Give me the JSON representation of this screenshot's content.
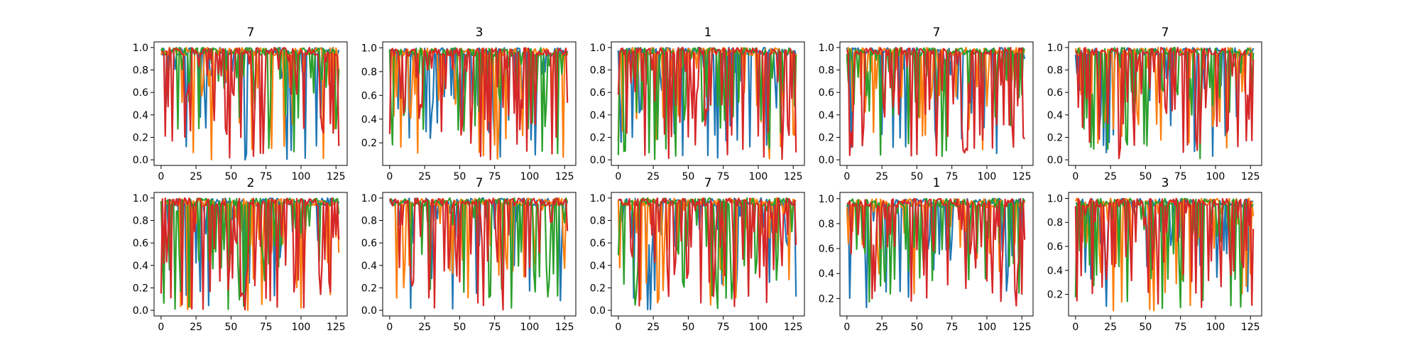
{
  "figure": {
    "background": "#ffffff",
    "rows": 2,
    "cols": 5
  },
  "chart_data": [
    {
      "type": "line",
      "title": "7",
      "xlim": [
        -5,
        133
      ],
      "ylim": [
        -0.05,
        1.05
      ],
      "xticks": [
        0,
        25,
        50,
        75,
        100,
        125
      ],
      "xtick_labels": [
        "0",
        "25",
        "50",
        "75",
        "100",
        "125"
      ],
      "yticks": [
        0,
        0.2,
        0.4,
        0.6,
        0.8,
        1.0
      ],
      "ytick_labels": [
        "0.0",
        "0.2",
        "0.4",
        "0.6",
        "0.8",
        "1.0"
      ],
      "series_count": 4,
      "n": 128,
      "seed": 11,
      "min_y": 0.0
    },
    {
      "type": "line",
      "title": "3",
      "xlim": [
        -5,
        133
      ],
      "ylim": [
        0.01,
        1.05
      ],
      "xticks": [
        0,
        25,
        50,
        75,
        100,
        125
      ],
      "xtick_labels": [
        "0",
        "25",
        "50",
        "75",
        "100",
        "125"
      ],
      "yticks": [
        0.2,
        0.4,
        0.6,
        0.8,
        1.0
      ],
      "ytick_labels": [
        "0.2",
        "0.4",
        "0.6",
        "0.8",
        "1.0"
      ],
      "series_count": 4,
      "n": 128,
      "seed": 23,
      "min_y": 0.06
    },
    {
      "type": "line",
      "title": "1",
      "xlim": [
        -5,
        133
      ],
      "ylim": [
        -0.05,
        1.05
      ],
      "xticks": [
        0,
        25,
        50,
        75,
        100,
        125
      ],
      "xtick_labels": [
        "0",
        "25",
        "50",
        "75",
        "100",
        "125"
      ],
      "yticks": [
        0,
        0.2,
        0.4,
        0.6,
        0.8,
        1.0
      ],
      "ytick_labels": [
        "0.0",
        "0.2",
        "0.4",
        "0.6",
        "0.8",
        "1.0"
      ],
      "series_count": 4,
      "n": 128,
      "seed": 37,
      "min_y": 0.0
    },
    {
      "type": "line",
      "title": "7",
      "xlim": [
        -5,
        133
      ],
      "ylim": [
        -0.05,
        1.05
      ],
      "xticks": [
        0,
        25,
        50,
        75,
        100,
        125
      ],
      "xtick_labels": [
        "0",
        "25",
        "50",
        "75",
        "100",
        "125"
      ],
      "yticks": [
        0,
        0.2,
        0.4,
        0.6,
        0.8,
        1.0
      ],
      "ytick_labels": [
        "0.0",
        "0.2",
        "0.4",
        "0.6",
        "0.8",
        "1.0"
      ],
      "series_count": 4,
      "n": 128,
      "seed": 41,
      "min_y": 0.0
    },
    {
      "type": "line",
      "title": "7",
      "xlim": [
        -5,
        133
      ],
      "ylim": [
        -0.05,
        1.05
      ],
      "xticks": [
        0,
        25,
        50,
        75,
        100,
        125
      ],
      "xtick_labels": [
        "0",
        "25",
        "50",
        "75",
        "100",
        "125"
      ],
      "yticks": [
        0,
        0.2,
        0.4,
        0.6,
        0.8,
        1.0
      ],
      "ytick_labels": [
        "0.0",
        "0.2",
        "0.4",
        "0.6",
        "0.8",
        "1.0"
      ],
      "series_count": 4,
      "n": 128,
      "seed": 53,
      "min_y": 0.0
    },
    {
      "type": "line",
      "title": "2",
      "xlim": [
        -5,
        133
      ],
      "ylim": [
        -0.05,
        1.05
      ],
      "xticks": [
        0,
        25,
        50,
        75,
        100,
        125
      ],
      "xtick_labels": [
        "0",
        "25",
        "50",
        "75",
        "100",
        "125"
      ],
      "yticks": [
        0,
        0.2,
        0.4,
        0.6,
        0.8,
        1.0
      ],
      "ytick_labels": [
        "0.0",
        "0.2",
        "0.4",
        "0.6",
        "0.8",
        "1.0"
      ],
      "series_count": 4,
      "n": 128,
      "seed": 67,
      "min_y": 0.0
    },
    {
      "type": "line",
      "title": "7",
      "xlim": [
        -5,
        133
      ],
      "ylim": [
        -0.05,
        1.05
      ],
      "xticks": [
        0,
        25,
        50,
        75,
        100,
        125
      ],
      "xtick_labels": [
        "0",
        "25",
        "50",
        "75",
        "100",
        "125"
      ],
      "yticks": [
        0,
        0.2,
        0.4,
        0.6,
        0.8,
        1.0
      ],
      "ytick_labels": [
        "0.0",
        "0.2",
        "0.4",
        "0.6",
        "0.8",
        "1.0"
      ],
      "series_count": 4,
      "n": 128,
      "seed": 71,
      "min_y": 0.0
    },
    {
      "type": "line",
      "title": "7",
      "xlim": [
        -5,
        133
      ],
      "ylim": [
        -0.05,
        1.05
      ],
      "xticks": [
        0,
        25,
        50,
        75,
        100,
        125
      ],
      "xtick_labels": [
        "0",
        "25",
        "50",
        "75",
        "100",
        "125"
      ],
      "yticks": [
        0,
        0.2,
        0.4,
        0.6,
        0.8,
        1.0
      ],
      "ytick_labels": [
        "0.0",
        "0.2",
        "0.4",
        "0.6",
        "0.8",
        "1.0"
      ],
      "series_count": 4,
      "n": 128,
      "seed": 83,
      "min_y": 0.0
    },
    {
      "type": "line",
      "title": "1",
      "xlim": [
        -5,
        133
      ],
      "ylim": [
        0.06,
        1.05
      ],
      "xticks": [
        0,
        25,
        50,
        75,
        100,
        125
      ],
      "xtick_labels": [
        "0",
        "25",
        "50",
        "75",
        "100",
        "125"
      ],
      "yticks": [
        0.2,
        0.4,
        0.6,
        0.8,
        1.0
      ],
      "ytick_labels": [
        "0.2",
        "0.4",
        "0.6",
        "0.8",
        "1.0"
      ],
      "series_count": 4,
      "n": 128,
      "seed": 97,
      "min_y": 0.12
    },
    {
      "type": "line",
      "title": "3",
      "xlim": [
        -5,
        133
      ],
      "ylim": [
        0.02,
        1.05
      ],
      "xticks": [
        0,
        25,
        50,
        75,
        100,
        125
      ],
      "xtick_labels": [
        "0",
        "25",
        "50",
        "75",
        "100",
        "125"
      ],
      "yticks": [
        0.2,
        0.4,
        0.6,
        0.8,
        1.0
      ],
      "ytick_labels": [
        "0.2",
        "0.4",
        "0.6",
        "0.8",
        "1.0"
      ],
      "series_count": 4,
      "n": 128,
      "seed": 101,
      "min_y": 0.06
    }
  ],
  "series_colors": [
    "#1f77b4",
    "#ff7f0e",
    "#2ca02c",
    "#d62728"
  ]
}
